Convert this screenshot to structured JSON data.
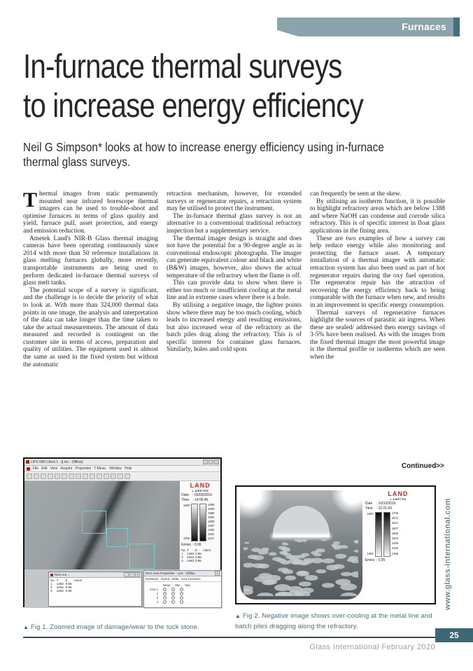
{
  "page": {
    "category": "Furnaces",
    "title_line1": "In-furnace thermal surveys",
    "title_line2": "to increase energy efficiency",
    "standfirst": "Neil G Simpson* looks at how to increase energy efficiency using in-furnace thermal glass surveys.",
    "continued": "Continued>>",
    "footer": "Glass International February 2020",
    "page_number": "25",
    "site_vertical": "www.glass-international.com"
  },
  "colors": {
    "accent_teal": "#436f7e",
    "badge_light": "#8ba3aa",
    "page_box": "#3c6874",
    "caption_teal": "#4c6f7c",
    "brand_red": "#cc2229"
  },
  "article": {
    "col1": {
      "dropcap": "T",
      "p1": "hermal images from static permanently mounted near infrared borescope thermal imagers can be used to trouble-shoot and optimise furnaces in terms of glass quality and yield, furnace pull, asset protection, and energy and emission reduction.",
      "p2": "Ametek Land's NIR-B Glass thermal imaging cameras have been operating continuously since 2014 with more than 50 reference installations in glass melting furnaces globally, more recently, transportable instruments are being used to perform dedicated in-furnace thermal surveys of glass melt tanks.",
      "p3": "The potential scope of a survey is significant, and the challenge is to decide the priority of what to look at. With more than 324,000 thermal data points in one image, the analysis and interpretation of the data can take longer than the time taken to take the actual measurements. The amount of data measured and recorded is contingent on the customer site in terms of access, preparation and quality of utilities. The equipment used is almost the same as used in the fixed system but without the automatic"
    },
    "col2": {
      "p1": "retraction mechanism, however, for extended surveys or regenerator repairs, a retraction system may be utilised to protect the instrument.",
      "p2": "The in-furnace thermal glass survey is not an alternative to a conventional traditional refractory inspection but a supplementary service.",
      "p3": "The thermal imager design is straight and does not have the potential for a 90-degree angle as in conventional endoscopic photographs. The imager can generate equivalent colour and black and white (B&W) images, however, also shows the actual temperature of the refractory when the flame is off.",
      "p4": "This can provide data to show when there is either too much or insufficient cooling at the metal line and in extreme cases where there is a hole.",
      "p5": "By utilising a negative image, the lighter points show where there may be too much cooling, which leads to increased energy and resulting emissions, but also increased wear of the refractory as the batch piles drag along the refractory. This is of specific interest for container glass furnaces.  Similarly, holes and cold spots"
    },
    "col3": {
      "p1": "can frequently be seen at the skew.",
      "p2": "By utilising an isotherm function, it is possible to highlight refractory areas which are below 1388 and where NaOH can condense and corrode silica refractory.  This is of specific interest in float glass applications in the fining area.",
      "p3": "These are two examples of how a survey can help reduce energy while also monitoring and protecting the furnace asset.  A temporary installation of a thermal imager with automatic retraction system has also been used as part of hot regenerator repairs during the oxy fuel operation.  The regenerator repair has the attraction of recovering the energy efficiency back to being comparable with the furnace when new, and results in an improvement in specific energy consumption.",
      "p4": "Thermal surveys of regenerative furnaces highlight the sources of parasitic air ingress.  When these are sealed/ addressed then energy savings of 3-5% have been realised.  As with the images from the fixed thermal imager the most powerful image is the thermal profile or isotherms which are seen when the"
    }
  },
  "fig1": {
    "window_title": "LIPS NIR Client 1 - [Live - Offline]",
    "menu": [
      "File",
      "Edit",
      "View",
      "Acquire",
      "Properties",
      "T-Meas.",
      "Window",
      "Help"
    ],
    "brand": "LAND",
    "brand2": "AMETEK",
    "date_label": "Date",
    "date_value": ": 03/05/2016",
    "time_label": "Time",
    "time_value": ": 14:06:46",
    "emiss_label": "Emiss",
    "emiss_value": ": 0.95",
    "scale_top": "1600",
    "scale_bottom": "1000",
    "ticks": [
      "1650",
      "1620",
      "1586",
      "1553",
      "1508",
      "1457",
      "1392",
      "1361",
      "1121"
    ],
    "readout_headers": [
      "No",
      "T",
      "E",
      "Alarm"
    ],
    "readout_rows": [
      [
        "1",
        "1493",
        "0.95"
      ],
      [
        "2",
        "1616",
        "0.95"
      ],
      [
        "3",
        "1483",
        "0.95"
      ]
    ],
    "dialogA_title": "Rect Are...",
    "dialogB_title": "Rect Area Properties - Live - Offline",
    "dialogB_tabs": [
      "Emissivity",
      "Alarms",
      "Delta",
      "Area Functions"
    ],
    "dialogB_cols": [
      "Mean",
      "Min",
      "Max"
    ],
    "dialogB_rows": [
      "Area 1",
      "2",
      "3",
      "4",
      "5"
    ],
    "caption": "Fig 1. Zoomed image of damage/wear to the tuck stone."
  },
  "fig2": {
    "brand": "LAND",
    "brand2": "AMETEK",
    "date_label": "Date",
    "date_value": ": 10/10/2016",
    "time_label": "Time",
    "time_value": ": 22:21:43",
    "emiss_label": "Emiss",
    "emiss_value": ": 0.95",
    "scale_top": "1800",
    "scale_bottom": "1000",
    "ticks": [
      "1706",
      "1672",
      "1641",
      "1607",
      "1558",
      "1523",
      "1459",
      "1430",
      "1396"
    ],
    "caption": "Fig 2. Negative image shows over-cooling at the metal line and batch piles dragging along the refractory."
  }
}
